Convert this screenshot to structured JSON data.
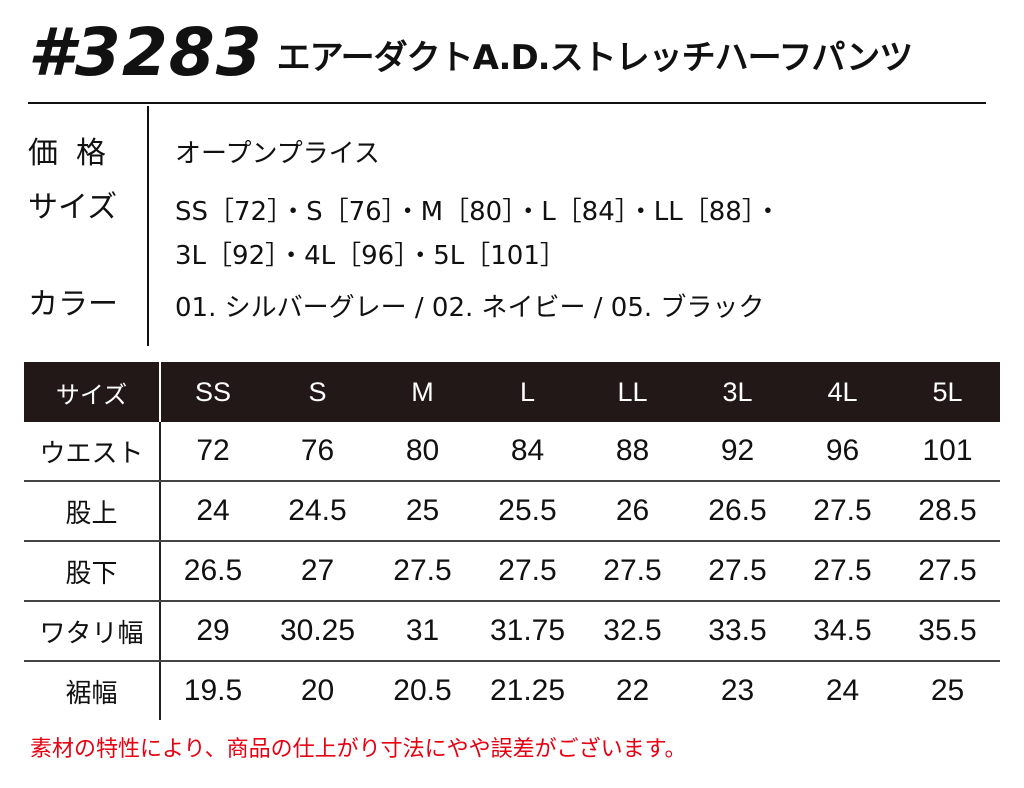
{
  "header": {
    "model": "#3283",
    "product_name": "エアーダクトA.D.ストレッチハーフパンツ"
  },
  "specs": {
    "price_label": "価格",
    "price_value": "オープンプライス",
    "size_label": "サイズ",
    "size_line1": "SS［72］・S［76］・M［80］・L［84］・LL［88］・",
    "size_line2": "3L［92］・4L［96］・5L［101］",
    "color_label": "カラー",
    "color_value": "01. シルバーグレー / 02. ネイビー / 05. ブラック"
  },
  "size_table": {
    "corner_label": "サイズ",
    "sizes": [
      "SS",
      "S",
      "M",
      "L",
      "LL",
      "3L",
      "4L",
      "5L"
    ],
    "rows": [
      {
        "label": "ウエスト",
        "values": [
          "72",
          "76",
          "80",
          "84",
          "88",
          "92",
          "96",
          "101"
        ]
      },
      {
        "label": "股上",
        "values": [
          "24",
          "24.5",
          "25",
          "25.5",
          "26",
          "26.5",
          "27.5",
          "28.5"
        ]
      },
      {
        "label": "股下",
        "values": [
          "26.5",
          "27",
          "27.5",
          "27.5",
          "27.5",
          "27.5",
          "27.5",
          "27.5"
        ]
      },
      {
        "label": "ワタリ幅",
        "values": [
          "29",
          "30.25",
          "31",
          "31.75",
          "32.5",
          "33.5",
          "34.5",
          "35.5"
        ]
      },
      {
        "label": "裾幅",
        "values": [
          "19.5",
          "20",
          "20.5",
          "21.25",
          "22",
          "23",
          "24",
          "25"
        ]
      }
    ]
  },
  "note": "素材の特性により、商品の仕上がり寸法にやや誤差がございます。",
  "colors": {
    "table_header_bg": "#221817",
    "note_text": "#e60012"
  }
}
